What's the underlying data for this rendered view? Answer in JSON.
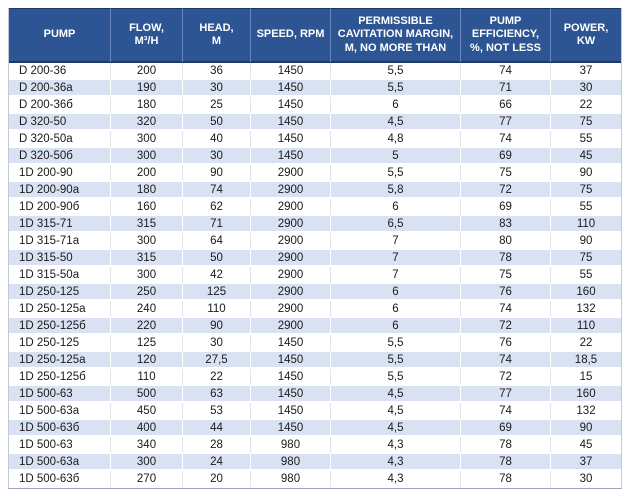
{
  "table": {
    "title": "Pump specifications table",
    "headers": [
      "PUMP",
      "FLOW,\nM³/H",
      "HEAD,\nM",
      "SPEED, RPM",
      "PERMISSIBLE\nCAVITATION MARGIN,\nM, NO MORE THAN",
      "PUMP\nEFFICIENCY,\n%, NOT LESS",
      "POWER,\nKW"
    ],
    "columns": [
      "pump",
      "flow_m3_h",
      "head_m",
      "speed_rpm",
      "cavitation_margin_m",
      "efficiency_pct",
      "power_kw"
    ],
    "rows": [
      [
        "D 200-36",
        "200",
        "36",
        "1450",
        "5,5",
        "74",
        "37"
      ],
      [
        "D 200-36a",
        "190",
        "30",
        "1450",
        "5,5",
        "71",
        "30"
      ],
      [
        "D 200-36б",
        "180",
        "25",
        "1450",
        "6",
        "66",
        "22"
      ],
      [
        "D 320-50",
        "320",
        "50",
        "1450",
        "4,5",
        "77",
        "75"
      ],
      [
        "D 320-50a",
        "300",
        "40",
        "1450",
        "4,8",
        "74",
        "55"
      ],
      [
        "D 320-50б",
        "300",
        "30",
        "1450",
        "5",
        "69",
        "45"
      ],
      [
        "1D 200-90",
        "200",
        "90",
        "2900",
        "5,5",
        "75",
        "90"
      ],
      [
        "1D 200-90a",
        "180",
        "74",
        "2900",
        "5,8",
        "72",
        "75"
      ],
      [
        "1D 200-90б",
        "160",
        "62",
        "2900",
        "6",
        "69",
        "55"
      ],
      [
        "1D 315-71",
        "315",
        "71",
        "2900",
        "6,5",
        "83",
        "110"
      ],
      [
        "1D 315-71a",
        "300",
        "64",
        "2900",
        "7",
        "80",
        "90"
      ],
      [
        "1D 315-50",
        "315",
        "50",
        "2900",
        "7",
        "78",
        "75"
      ],
      [
        "1D 315-50a",
        "300",
        "42",
        "2900",
        "7",
        "75",
        "55"
      ],
      [
        "1D 250-125",
        "250",
        "125",
        "2900",
        "6",
        "76",
        "160"
      ],
      [
        "1D 250-125a",
        "240",
        "110",
        "2900",
        "6",
        "74",
        "132"
      ],
      [
        "1D 250-125б",
        "220",
        "90",
        "2900",
        "6",
        "72",
        "110"
      ],
      [
        "1D 250-125",
        "125",
        "30",
        "1450",
        "5,5",
        "76",
        "22"
      ],
      [
        "1D 250-125a",
        "120",
        "27,5",
        "1450",
        "5,5",
        "74",
        "18,5"
      ],
      [
        "1D 250-125б",
        "110",
        "22",
        "1450",
        "5,5",
        "72",
        "15"
      ],
      [
        "1D 500-63",
        "500",
        "63",
        "1450",
        "4,5",
        "77",
        "160"
      ],
      [
        "1D 500-63a",
        "450",
        "53",
        "1450",
        "4,5",
        "74",
        "132"
      ],
      [
        "1D 500-63б",
        "400",
        "44",
        "1450",
        "4,5",
        "69",
        "90"
      ],
      [
        "1D 500-63",
        "340",
        "28",
        "980",
        "4,3",
        "78",
        "45"
      ],
      [
        "1D 500-63a",
        "300",
        "24",
        "980",
        "4,3",
        "78",
        "37"
      ],
      [
        "1D 500-63б",
        "270",
        "20",
        "980",
        "4,3",
        "78",
        "30"
      ]
    ],
    "colors": {
      "header_bg": "#2d5493",
      "header_text": "#ffffff",
      "band_row_bg": "#d9e2f3",
      "plain_row_bg": "#ffffff",
      "header_border_dark": "#1f3864",
      "cell_text": "#1a1a1a"
    }
  }
}
